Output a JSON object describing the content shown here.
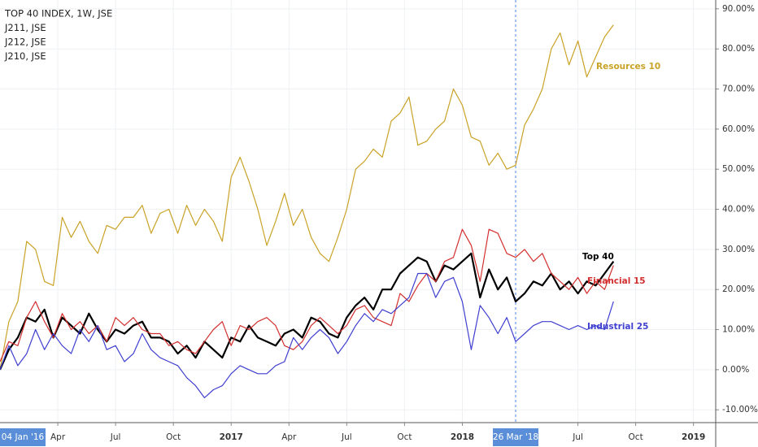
{
  "chart_data": {
    "type": "line",
    "legend": [
      "TOP 40 INDEX, 1W, JSE",
      "J211, JSE",
      "J212, JSE",
      "J210, JSE"
    ],
    "x": [
      0,
      2,
      4,
      6,
      8,
      10,
      12,
      14,
      16,
      18,
      20,
      22,
      24,
      26,
      28,
      30,
      32,
      34,
      36,
      38,
      40,
      42,
      44,
      46,
      48,
      50,
      52,
      54,
      56,
      58,
      60,
      62,
      64,
      66,
      68,
      70,
      72,
      74,
      76,
      78,
      80,
      82,
      84,
      86,
      88,
      90,
      92,
      94,
      96,
      98,
      100,
      102,
      104,
      106,
      108,
      110,
      112,
      114,
      116,
      118,
      120,
      122,
      124,
      126,
      128,
      130,
      132,
      134,
      136,
      138
    ],
    "xlim": [
      0,
      161
    ],
    "xticks": [
      {
        "value": 0,
        "label": "04 Jan '16",
        "highlight": true
      },
      {
        "value": 13,
        "label": "Apr"
      },
      {
        "value": 26,
        "label": "Jul"
      },
      {
        "value": 39,
        "label": "Oct"
      },
      {
        "value": 52,
        "label": "2017"
      },
      {
        "value": 65,
        "label": "Apr"
      },
      {
        "value": 78,
        "label": "Jul"
      },
      {
        "value": 91,
        "label": "Oct"
      },
      {
        "value": 104,
        "label": "2018"
      },
      {
        "value": 116,
        "label": "26 Mar '18",
        "highlight": true
      },
      {
        "value": 130,
        "label": "Jul"
      },
      {
        "value": 143,
        "label": "Oct"
      },
      {
        "value": 156,
        "label": "2019"
      }
    ],
    "ylim": [
      -13.2,
      92.2
    ],
    "yticks": [
      {
        "value": -10,
        "label": "-10.00%"
      },
      {
        "value": 0,
        "label": "0.00%"
      },
      {
        "value": 10,
        "label": "10.00%"
      },
      {
        "value": 20,
        "label": "20.00%"
      },
      {
        "value": 30,
        "label": "30.00%"
      },
      {
        "value": 40,
        "label": "40.00%"
      },
      {
        "value": 50,
        "label": "50.00%"
      },
      {
        "value": 60,
        "label": "60.00%"
      },
      {
        "value": 70,
        "label": "70.00%"
      },
      {
        "value": 80,
        "label": "80.00%"
      },
      {
        "value": 90,
        "label": "90.00%"
      }
    ],
    "grid": true,
    "series": [
      {
        "name": "Resources 10",
        "color": "#c9a227",
        "width": 1.2,
        "values": [
          0,
          12,
          17,
          32,
          30,
          22,
          21,
          38,
          33,
          37,
          32,
          29,
          36,
          35,
          38,
          38,
          41,
          34,
          39,
          40,
          34,
          41,
          36,
          40,
          37,
          32,
          48,
          53,
          47,
          40,
          31,
          37,
          44,
          36,
          40,
          33,
          29,
          27,
          33,
          40,
          50,
          52,
          55,
          53,
          62,
          64,
          68,
          56,
          57,
          60,
          62,
          70,
          66,
          58,
          57,
          51,
          54,
          50,
          51,
          61,
          65,
          70,
          80,
          84,
          76,
          82,
          73,
          78,
          83,
          86
        ]
      },
      {
        "name": "Top 40",
        "color": "#000000",
        "width": 2.2,
        "values": [
          0,
          5,
          8,
          13,
          12,
          15,
          8,
          13,
          11,
          9,
          14,
          10,
          7,
          10,
          9,
          11,
          12,
          8,
          8,
          7,
          4,
          6,
          3,
          7,
          5,
          3,
          8,
          7,
          11,
          8,
          7,
          6,
          9,
          10,
          8,
          13,
          12,
          9,
          8,
          13,
          16,
          18,
          15,
          20,
          20,
          24,
          26,
          28,
          27,
          22,
          26,
          25,
          27,
          29,
          18,
          25,
          20,
          23,
          17,
          19,
          22,
          21,
          24,
          20,
          22,
          19,
          22,
          21,
          24,
          27
        ]
      },
      {
        "name": "Financial 15",
        "color": "#d32f2f",
        "width": 1.2,
        "values": [
          2,
          7,
          6,
          13,
          17,
          12,
          8,
          14,
          10,
          12,
          9,
          11,
          7,
          13,
          11,
          13,
          10,
          9,
          9,
          6,
          7,
          5,
          4,
          7,
          10,
          12,
          6,
          11,
          10,
          12,
          13,
          11,
          6,
          5,
          7,
          11,
          13,
          11,
          9,
          11,
          15,
          16,
          13,
          12,
          11,
          19,
          17,
          21,
          24,
          22,
          27,
          28,
          35,
          31,
          22,
          35,
          34,
          29,
          28,
          30,
          27,
          29,
          24,
          22,
          20,
          23,
          19,
          22,
          20,
          26
        ]
      },
      {
        "name": "Industrial 25",
        "color": "#3f3fd0",
        "width": 1.2,
        "values": [
          0,
          6,
          1,
          4,
          10,
          5,
          9,
          6,
          4,
          10,
          7,
          11,
          5,
          6,
          2,
          4,
          9,
          5,
          3,
          2,
          1,
          -2,
          -4,
          -7,
          -5,
          -4,
          -1,
          1,
          0,
          -1,
          -1,
          1,
          2,
          8,
          5,
          8,
          10,
          8,
          4,
          7,
          11,
          14,
          12,
          15,
          14,
          16,
          18,
          24,
          24,
          18,
          22,
          23,
          17,
          5,
          16,
          13,
          9,
          13,
          7,
          9,
          11,
          12,
          12,
          11,
          10,
          11,
          10,
          11,
          10,
          17
        ]
      }
    ]
  }
}
